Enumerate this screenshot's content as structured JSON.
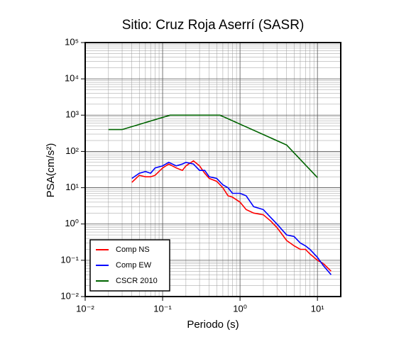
{
  "chart_data": {
    "type": "line",
    "title": "Sitio: Cruz Roja Aserrí (SASR)",
    "x_label": "Periodo (s)",
    "y_label": "PSA(cm/s²)",
    "xscale": "log",
    "yscale": "log",
    "grid": true,
    "minor_grid": true,
    "legend_position": "lower left",
    "xlim": [
      0.01,
      20
    ],
    "ylim": [
      0.01,
      100000
    ],
    "xticks": [
      {
        "value": 0.01,
        "label": "10⁻²"
      },
      {
        "value": 0.1,
        "label": "10⁻¹"
      },
      {
        "value": 1,
        "label": "10⁰"
      },
      {
        "value": 10,
        "label": "10¹"
      }
    ],
    "yticks": [
      {
        "value": 0.01,
        "label": "10⁻²"
      },
      {
        "value": 0.1,
        "label": "10⁻¹"
      },
      {
        "value": 1,
        "label": "10⁰"
      },
      {
        "value": 10,
        "label": "10¹"
      },
      {
        "value": 100,
        "label": "10²"
      },
      {
        "value": 1000,
        "label": "10³"
      },
      {
        "value": 10000,
        "label": "10⁴"
      },
      {
        "value": 100000,
        "label": "10⁵"
      }
    ],
    "series": [
      {
        "name": "Comp NS",
        "color": "#ff0000",
        "x": [
          0.04,
          0.05,
          0.06,
          0.07,
          0.08,
          0.1,
          0.12,
          0.15,
          0.18,
          0.2,
          0.25,
          0.3,
          0.35,
          0.4,
          0.5,
          0.6,
          0.7,
          0.8,
          1,
          1.2,
          1.5,
          2,
          2.5,
          3,
          4,
          5,
          6,
          7,
          8,
          10,
          12,
          15
        ],
        "values": [
          14,
          22,
          20,
          20,
          22,
          35,
          45,
          35,
          30,
          40,
          55,
          40,
          25,
          18,
          15,
          10,
          6,
          5.5,
          4,
          2.5,
          2,
          1.8,
          1.2,
          0.8,
          0.35,
          0.25,
          0.2,
          0.2,
          0.15,
          0.1,
          0.08,
          0.05
        ]
      },
      {
        "name": "Comp EW",
        "color": "#0000ff",
        "x": [
          0.04,
          0.05,
          0.06,
          0.07,
          0.08,
          0.1,
          0.12,
          0.15,
          0.18,
          0.2,
          0.25,
          0.3,
          0.35,
          0.4,
          0.5,
          0.6,
          0.7,
          0.8,
          1,
          1.2,
          1.5,
          2,
          2.5,
          3,
          4,
          5,
          6,
          7,
          8,
          10,
          12,
          15
        ],
        "values": [
          18,
          25,
          28,
          25,
          35,
          40,
          50,
          40,
          45,
          50,
          45,
          30,
          30,
          20,
          18,
          12,
          10,
          7,
          7,
          6,
          3,
          2.5,
          1.5,
          1,
          0.5,
          0.45,
          0.3,
          0.25,
          0.2,
          0.12,
          0.07,
          0.04
        ]
      },
      {
        "name": "CSCR 2010",
        "color": "#006400",
        "x": [
          0.02,
          0.03,
          0.125,
          0.55,
          4,
          10
        ],
        "values": [
          400,
          400,
          1000,
          1000,
          150,
          19
        ]
      }
    ]
  }
}
